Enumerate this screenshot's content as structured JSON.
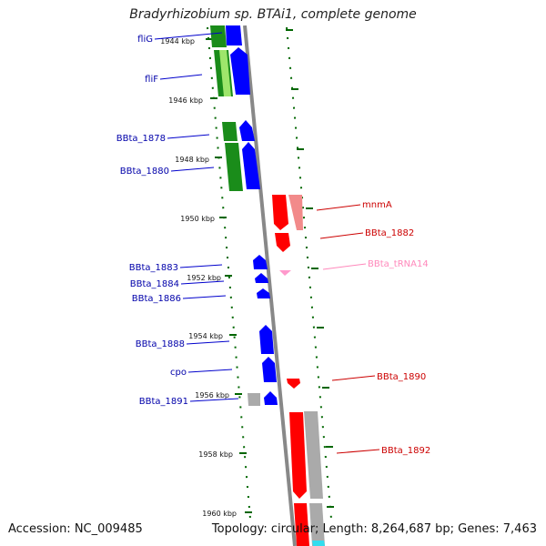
{
  "title": "Bradyrhizobium sp. BTAi1, complete genome",
  "footer": {
    "accession": "Accession: NC_009485",
    "summary": "Topology: circular; Length: 8,264,687 bp; Genes: 7,463"
  },
  "colors": {
    "forward_gene": "#0000ff",
    "reverse_gene": "#ff0000",
    "trna_gene": "#ff99cc",
    "cds_green": "#1a8c1a",
    "cds_grey": "#aaaaaa",
    "backbone": "#888888",
    "tick": "#006600",
    "label_forward": "#0000aa",
    "label_reverse": "#cc0000",
    "label_trna": "#ff88bb"
  },
  "ticks": [
    {
      "label": "1944 kbp"
    },
    {
      "label": "1946 kbp"
    },
    {
      "label": "1948 kbp"
    },
    {
      "label": "1950 kbp"
    },
    {
      "label": "1952 kbp"
    },
    {
      "label": "1954 kbp"
    },
    {
      "label": "1956 kbp"
    },
    {
      "label": "1958 kbp"
    },
    {
      "label": "1960 kbp"
    }
  ],
  "genes_forward": [
    {
      "label": "fliG"
    },
    {
      "label": "fliF"
    },
    {
      "label": "BBta_1878"
    },
    {
      "label": "BBta_1880"
    },
    {
      "label": "BBta_1883"
    },
    {
      "label": "BBta_1884"
    },
    {
      "label": "BBta_1886"
    },
    {
      "label": "BBta_1888"
    },
    {
      "label": "cpo"
    },
    {
      "label": "BBta_1891"
    }
  ],
  "genes_reverse": [
    {
      "label": "mnmA"
    },
    {
      "label": "BBta_1882"
    },
    {
      "label": "BBta_tRNA14"
    },
    {
      "label": "BBta_1890"
    },
    {
      "label": "BBta_1892"
    }
  ]
}
